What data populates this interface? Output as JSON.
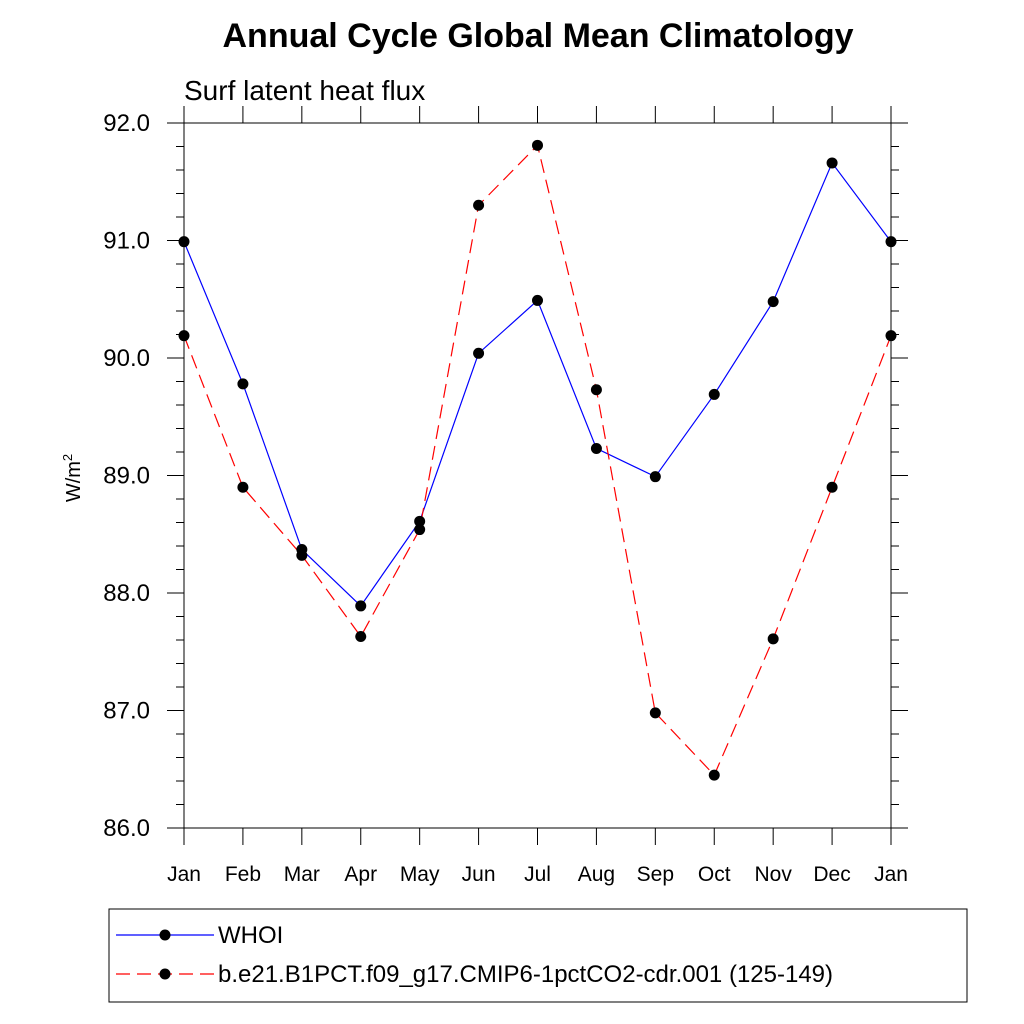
{
  "chart_data": {
    "type": "line",
    "title": "Annual Cycle Global Mean Climatology",
    "subtitle": "Surf latent heat flux",
    "ylabel_base": "W/m",
    "ylabel_sup": "2",
    "xlabel": "",
    "categories": [
      "Jan",
      "Feb",
      "Mar",
      "Apr",
      "May",
      "Jun",
      "Jul",
      "Aug",
      "Sep",
      "Oct",
      "Nov",
      "Dec",
      "Jan"
    ],
    "ylim": [
      86.0,
      92.0
    ],
    "yticks": [
      "92.0",
      "91.0",
      "90.0",
      "89.0",
      "88.0",
      "87.0",
      "86.0"
    ],
    "ytick_values": [
      92.0,
      91.0,
      90.0,
      89.0,
      88.0,
      87.0,
      86.0
    ],
    "grid": false,
    "legend_position": "bottom",
    "series": [
      {
        "name": "WHOI",
        "color": "#0000ff",
        "style": "solid",
        "values": [
          90.99,
          89.78,
          88.37,
          87.89,
          88.61,
          90.04,
          90.49,
          89.23,
          88.99,
          89.69,
          90.48,
          91.66,
          90.99
        ]
      },
      {
        "name": "b.e21.B1PCT.f09_g17.CMIP6-1pctCO2-cdr.001 (125-149)",
        "color": "#ff0000",
        "style": "dashed",
        "values": [
          90.19,
          88.9,
          88.32,
          87.63,
          88.54,
          91.3,
          91.81,
          89.73,
          86.98,
          86.45,
          87.61,
          88.9,
          90.19
        ]
      }
    ]
  }
}
